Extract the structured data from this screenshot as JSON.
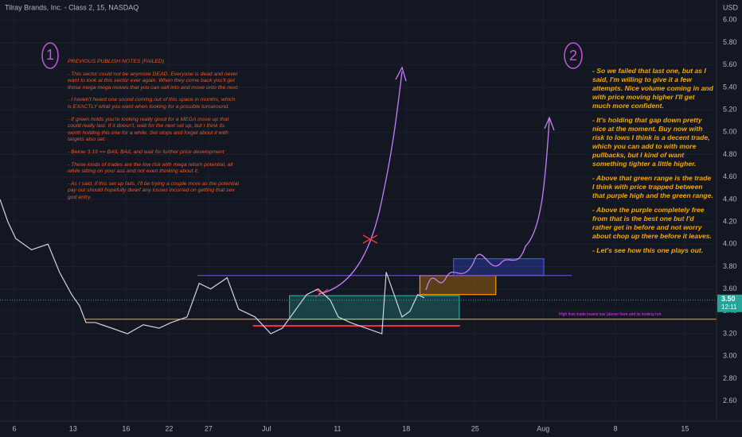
{
  "chart_data": {
    "type": "line",
    "title": "Tilray Brands, Inc. - Class 2, 15, NASDAQ",
    "currency": "USD",
    "xlim": [
      0,
      100
    ],
    "ylim": [
      2.42,
      6.18
    ],
    "xticks": [
      {
        "value": 2,
        "label": "6"
      },
      {
        "value": 10.2,
        "label": "13"
      },
      {
        "value": 17.6,
        "label": "16"
      },
      {
        "value": 23.6,
        "label": "22"
      },
      {
        "value": 29.1,
        "label": "27"
      },
      {
        "value": 37.2,
        "label": "Jul"
      },
      {
        "value": 47.1,
        "label": "11"
      },
      {
        "value": 56.7,
        "label": "18"
      },
      {
        "value": 66.3,
        "label": "25"
      },
      {
        "value": 75.8,
        "label": "Aug"
      },
      {
        "value": 85.9,
        "label": "8"
      },
      {
        "value": 95.6,
        "label": "15"
      }
    ],
    "yticks": [
      {
        "value": 6,
        "label": "6.00"
      },
      {
        "value": 5.8,
        "label": "5.80"
      },
      {
        "value": 5.6,
        "label": "5.60"
      },
      {
        "value": 5.4,
        "label": "5.40"
      },
      {
        "value": 5.2,
        "label": "5.20"
      },
      {
        "value": 5,
        "label": "5.00"
      },
      {
        "value": 4.8,
        "label": "4.80"
      },
      {
        "value": 4.6,
        "label": "4.60"
      },
      {
        "value": 4.4,
        "label": "4.40"
      },
      {
        "value": 4.2,
        "label": "4.20"
      },
      {
        "value": 4,
        "label": "4.00"
      },
      {
        "value": 3.8,
        "label": "3.80"
      },
      {
        "value": 3.6,
        "label": "3.60"
      },
      {
        "value": 3.4,
        "label": "3.40"
      },
      {
        "value": 3.2,
        "label": "3.20"
      },
      {
        "value": 3,
        "label": "3.00"
      },
      {
        "value": 2.8,
        "label": "2.80"
      },
      {
        "value": 2.6,
        "label": "2.60"
      }
    ],
    "series": [
      {
        "name": "Price",
        "color": "#d1d4dc",
        "x": [
          0,
          1.1,
          2.2,
          4.4,
          6.7,
          8.3,
          10,
          11.1,
          12,
          13.3,
          15.6,
          17.8,
          20,
          22.2,
          23.9,
          26.1,
          27.8,
          29.4,
          31.7,
          33.3,
          35.6,
          37.8,
          39.4,
          41.1,
          42.8,
          44.4,
          46.1,
          47.2,
          48.9,
          51.1,
          53.3,
          53.9,
          55,
          56.1,
          57.2,
          58.3,
          59.2
        ],
        "values": [
          4.4,
          4.2,
          4.05,
          3.95,
          4.0,
          3.75,
          3.55,
          3.45,
          3.3,
          3.3,
          3.25,
          3.2,
          3.28,
          3.25,
          3.3,
          3.35,
          3.65,
          3.6,
          3.7,
          3.42,
          3.35,
          3.2,
          3.25,
          3.4,
          3.55,
          3.6,
          3.5,
          3.35,
          3.3,
          3.25,
          3.2,
          3.75,
          3.55,
          3.35,
          3.4,
          3.55,
          3.52
        ]
      }
    ],
    "last_price": {
      "value": 3.5,
      "label": "3.50"
    },
    "countdown": "12:11",
    "zones": [
      {
        "x": [
          40.4,
          64.1
        ],
        "y": [
          3.33,
          3.54
        ],
        "color": "#26a69a"
      },
      {
        "x": [
          58.6,
          69.2
        ],
        "y": [
          3.55,
          3.72
        ],
        "color": "#ff9800"
      },
      {
        "x": [
          63.3,
          75.9
        ],
        "y": [
          3.72,
          3.87
        ],
        "color": "#3f51f5"
      }
    ],
    "levels": [
      {
        "price": 3.72,
        "x": [
          27.6,
          79.8
        ],
        "color": "#7e57c2"
      },
      {
        "price": 3.33,
        "x": [
          11.9,
          100
        ],
        "color": "#f5b400"
      },
      {
        "price": 3.27,
        "x": [
          35.3,
          64.2
        ],
        "color": "#f23645"
      }
    ],
    "level_note": "High that made lowest low (above here and its looking hot",
    "markers": [
      "1",
      "2"
    ],
    "notes_left": {
      "heading": "PREVIOUS PUBLISH NOTES (FAILED)",
      "paragraphs": [
        "- This sector could not be anymore DEAD. Everyone is dead and never want to look at this sector ever again. When they come back you'll get those mega mega moves that you can sell into and move onto the next.",
        "- I haven't heard one sound coming out of this space in months, which is EXACTLY what you want when looking for a possible turnaround.",
        "- If green holds you're looking really good for a MEGA move up that could really last. If it doesn't, wait for the next set up, but I think its worth holding this one for a while. Set stops and forget about it with targets also set.",
        "- Below 3.19 == BAIL BAIL and wait for further price development",
        "- These kinds of trades are the low risk with mega return potential, all while sitting on your ass and not even thinking about it.",
        "- As I said, if this set up fails, I'll be trying a couple more as the potential pay out should hopefully dwarf any losses incurred on getting that sex god entry."
      ]
    },
    "notes_right": {
      "paragraphs": [
        "- So we failed that last one, but as I said, I'm willing to give it a few attempts. Nice volume coming in and with price moving higher I'll get much more confident.",
        "- It's holding that gap down pretty nice at the moment. Buy now with risk to lows I think is a decent trade, which you can add to with more pullbacks, but I kind of want something tighter a little higher.",
        "- Above that green range is the trade I think with price trapped between that purple high and the green range.",
        "- Above the purple completely free from that is the best one but I'd rather get in before and not worry about chop up there before it leaves.",
        "- Let's see how this one plays out."
      ]
    }
  }
}
